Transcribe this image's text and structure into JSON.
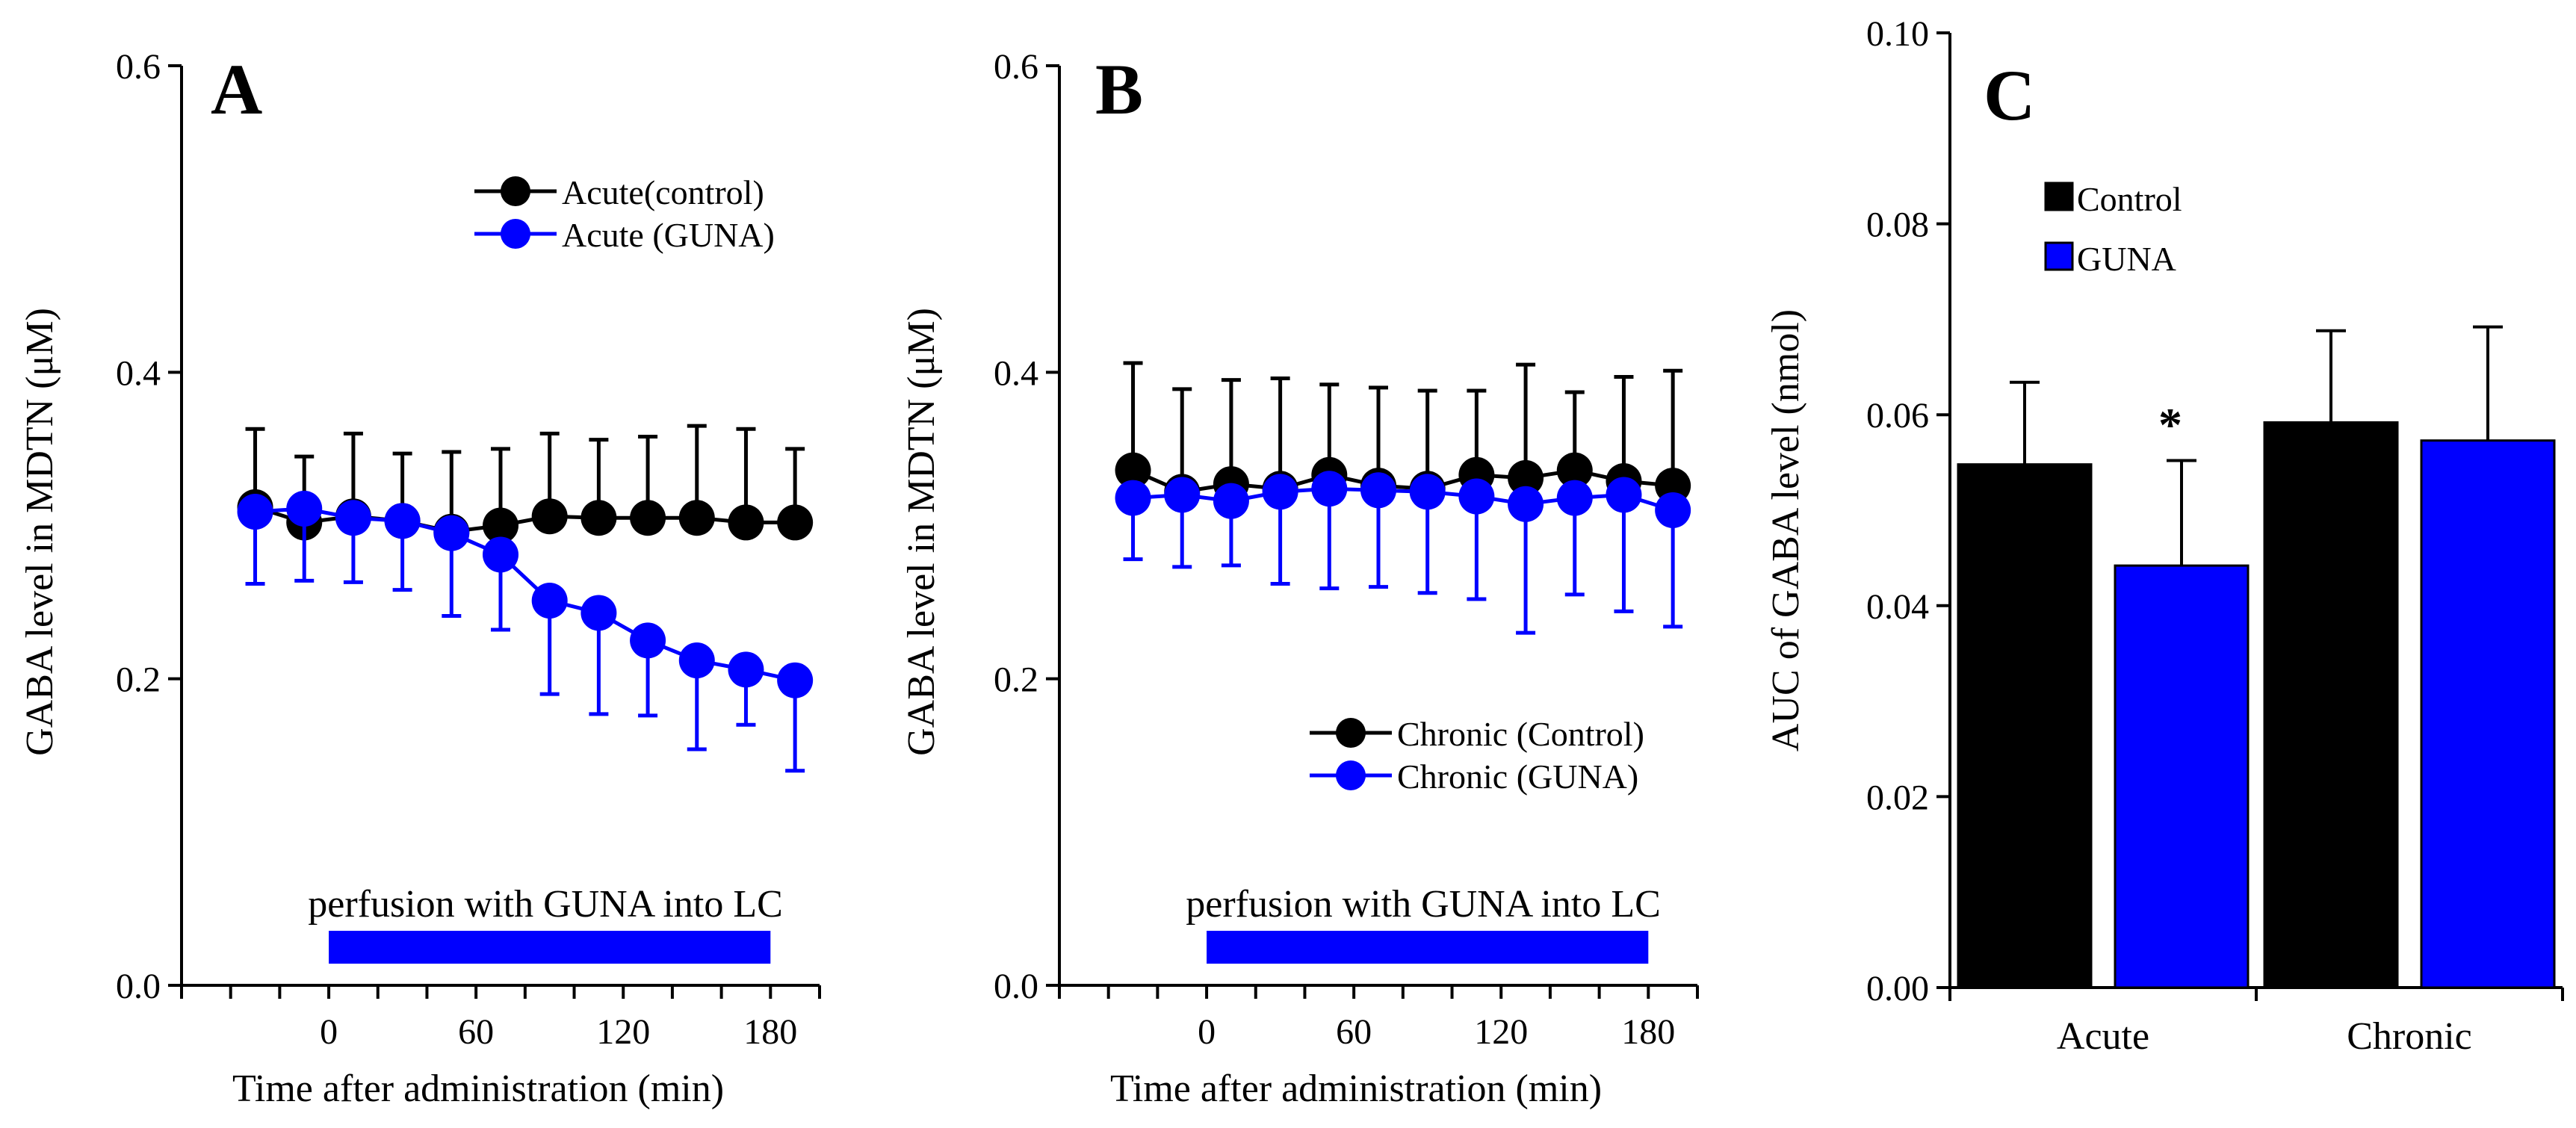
{
  "chart_data": [
    {
      "type": "line",
      "panel_label": "A",
      "xlabel": "Time after administration (min)",
      "ylabel": "GABA level in MDTN (μM)",
      "x_ticks": [
        0,
        60,
        120,
        180
      ],
      "x_tick_labels": [
        "0",
        "60",
        "120",
        "180"
      ],
      "y_ticks": [
        0.0,
        0.2,
        0.4,
        0.6
      ],
      "y_tick_labels": [
        "0.0",
        "0.2",
        "0.4",
        "0.6"
      ],
      "xlim": [
        -60,
        200
      ],
      "ylim": [
        0,
        0.6
      ],
      "legend_position": "top-right",
      "annotation": {
        "text": "perfusion with GUNA into LC",
        "x_start": 0,
        "x_end": 180,
        "color": "#0000FF"
      },
      "x": [
        -30,
        -10,
        10,
        30,
        50,
        70,
        90,
        110,
        130,
        150,
        170,
        190
      ],
      "series": [
        {
          "name": "Acute(control)",
          "color": "#000000",
          "values": [
            0.312,
            0.302,
            0.306,
            0.303,
            0.296,
            0.3,
            0.306,
            0.305,
            0.305,
            0.305,
            0.302,
            0.302
          ],
          "error_upper": [
            0.363,
            0.345,
            0.36,
            0.347,
            0.348,
            0.35,
            0.36,
            0.356,
            0.358,
            0.365,
            0.363,
            0.35
          ],
          "error_lower": []
        },
        {
          "name": "Acute (GUNA)",
          "color": "#0000FF",
          "values": [
            0.309,
            0.311,
            0.305,
            0.303,
            0.295,
            0.281,
            0.251,
            0.243,
            0.225,
            0.212,
            0.206,
            0.199
          ],
          "error_upper": [],
          "error_lower": [
            0.262,
            0.264,
            0.263,
            0.258,
            0.241,
            0.232,
            0.19,
            0.177,
            0.176,
            0.154,
            0.17,
            0.14
          ]
        }
      ]
    },
    {
      "type": "line",
      "panel_label": "B",
      "xlabel": "Time after administration (min)",
      "ylabel": "GABA level in MDTN (μM)",
      "x_ticks": [
        0,
        60,
        120,
        180
      ],
      "x_tick_labels": [
        "0",
        "60",
        "120",
        "180"
      ],
      "y_ticks": [
        0.0,
        0.2,
        0.4,
        0.6
      ],
      "y_tick_labels": [
        "0.0",
        "0.2",
        "0.4",
        "0.6"
      ],
      "xlim": [
        -60,
        200
      ],
      "ylim": [
        0,
        0.6
      ],
      "legend_position": "bottom-right",
      "annotation": {
        "text": "perfusion with GUNA into LC",
        "x_start": 0,
        "x_end": 180,
        "color": "#0000FF"
      },
      "x": [
        -30,
        -10,
        10,
        30,
        50,
        70,
        90,
        110,
        130,
        150,
        170,
        190
      ],
      "series": [
        {
          "name": "Chronic (Control)",
          "color": "#000000",
          "values": [
            0.336,
            0.322,
            0.327,
            0.324,
            0.333,
            0.326,
            0.324,
            0.333,
            0.331,
            0.336,
            0.329,
            0.326
          ],
          "error_upper": [
            0.406,
            0.389,
            0.395,
            0.396,
            0.392,
            0.39,
            0.388,
            0.388,
            0.405,
            0.387,
            0.397,
            0.401
          ],
          "error_lower": []
        },
        {
          "name": "Chronic (GUNA)",
          "color": "#0000FF",
          "values": [
            0.318,
            0.32,
            0.316,
            0.322,
            0.324,
            0.323,
            0.322,
            0.319,
            0.314,
            0.318,
            0.32,
            0.31
          ],
          "error_upper": [],
          "error_lower": [
            0.278,
            0.273,
            0.274,
            0.262,
            0.259,
            0.26,
            0.256,
            0.252,
            0.23,
            0.255,
            0.244,
            0.234
          ]
        }
      ]
    },
    {
      "type": "bar",
      "panel_label": "C",
      "ylabel": "AUC of GABA level (nmol)",
      "categories": [
        "Acute",
        "Chronic"
      ],
      "y_ticks": [
        0.0,
        0.02,
        0.04,
        0.06,
        0.08,
        0.1
      ],
      "y_tick_labels": [
        "0.00",
        "0.02",
        "0.04",
        "0.06",
        "0.08",
        "0.10"
      ],
      "ylim": [
        0,
        0.1
      ],
      "legend_position": "top-left",
      "series": [
        {
          "name": "Control",
          "color": "#000000",
          "values": [
            0.0548,
            0.0592
          ],
          "error_upper": [
            0.0634,
            0.0688
          ]
        },
        {
          "name": "GUNA",
          "color": "#0000FF",
          "values": [
            0.0442,
            0.0573
          ],
          "error_upper": [
            0.0552,
            0.0692
          ]
        }
      ],
      "annotations": [
        {
          "text": "*",
          "category": "Acute",
          "series": "GUNA"
        }
      ]
    }
  ]
}
